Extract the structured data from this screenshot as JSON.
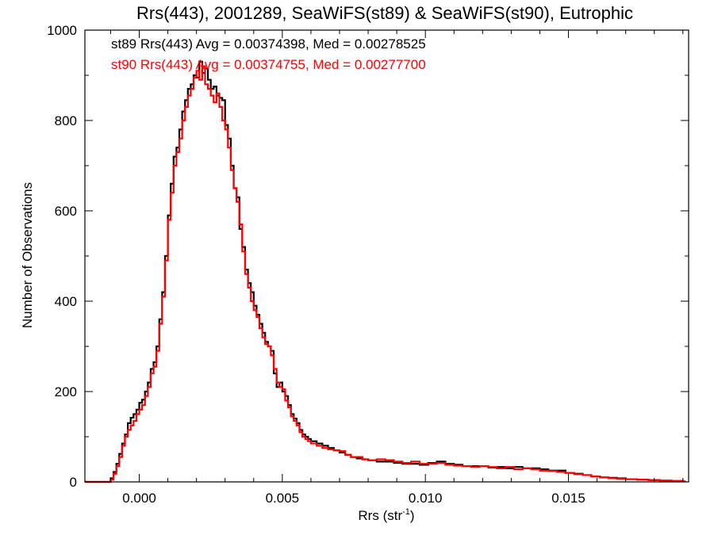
{
  "chart_data": {
    "type": "line",
    "style": "step histogram",
    "title": "Rrs(443), 2001289, SeaWiFS(st89) & SeaWiFS(st90), Eutrophic",
    "xlabel": "Rrs (str",
    "xlabel_superscript": "-1",
    "xlabel_suffix": ")",
    "ylabel": "Number of Observations",
    "xlim": [
      -0.0019,
      0.0192
    ],
    "ylim": [
      0,
      1000
    ],
    "xticks": [
      0.0,
      0.005,
      0.01,
      0.015
    ],
    "xtick_labels": [
      "0.000",
      "0.005",
      "0.010",
      "0.015"
    ],
    "yticks": [
      0,
      200,
      400,
      600,
      800,
      1000
    ],
    "ytick_labels": [
      "0",
      "200",
      "400",
      "600",
      "800",
      "1000"
    ],
    "grid": false,
    "legend_position": "top-left",
    "bin_width": 0.0001,
    "series": [
      {
        "name": "st89 Rrs(443) Avg = 0.00374398, Med = 0.00278525",
        "color": "#000000",
        "x": [
          -0.0019,
          -0.0018,
          -0.0017,
          -0.0016,
          -0.0015,
          -0.0014,
          -0.0013,
          -0.0012,
          -0.0011,
          -0.001,
          -0.0009,
          -0.0008,
          -0.0007,
          -0.0006,
          -0.0005,
          -0.0004,
          -0.0003,
          -0.0002,
          -0.0001,
          0.0,
          0.0001,
          0.0002,
          0.0003,
          0.0004,
          0.0005,
          0.0006,
          0.0007,
          0.0008,
          0.0009,
          0.001,
          0.0011,
          0.0012,
          0.0013,
          0.0014,
          0.0015,
          0.0016,
          0.0017,
          0.0018,
          0.0019,
          0.002,
          0.0021,
          0.0022,
          0.0023,
          0.0024,
          0.0025,
          0.0026,
          0.0027,
          0.0028,
          0.0029,
          0.003,
          0.0031,
          0.0032,
          0.0033,
          0.0034,
          0.0035,
          0.0036,
          0.0037,
          0.0038,
          0.0039,
          0.004,
          0.0041,
          0.0042,
          0.0043,
          0.0044,
          0.0045,
          0.0046,
          0.0047,
          0.0048,
          0.0049,
          0.005,
          0.0051,
          0.0052,
          0.0053,
          0.0054,
          0.0055,
          0.0056,
          0.0057,
          0.0058,
          0.0059,
          0.006,
          0.0062,
          0.0064,
          0.0066,
          0.0068,
          0.007,
          0.0072,
          0.0074,
          0.0076,
          0.0078,
          0.008,
          0.0083,
          0.0086,
          0.0089,
          0.0092,
          0.0095,
          0.0098,
          0.0101,
          0.0104,
          0.0107,
          0.011,
          0.0113,
          0.0116,
          0.0119,
          0.0122,
          0.0125,
          0.0128,
          0.0131,
          0.0134,
          0.0137,
          0.014,
          0.0143,
          0.0146,
          0.0149,
          0.0152,
          0.0155,
          0.0158,
          0.0161,
          0.0164,
          0.0167,
          0.017,
          0.0174,
          0.0178,
          0.0182,
          0.0186,
          0.019
        ],
        "y": [
          0,
          0,
          0,
          0,
          0,
          0,
          0,
          0,
          0,
          8,
          22,
          40,
          62,
          85,
          105,
          130,
          142,
          150,
          160,
          175,
          182,
          200,
          220,
          250,
          265,
          300,
          360,
          420,
          500,
          590,
          660,
          720,
          740,
          780,
          820,
          845,
          870,
          880,
          900,
          895,
          930,
          905,
          915,
          890,
          870,
          875,
          855,
          850,
          845,
          790,
          760,
          700,
          650,
          630,
          560,
          520,
          470,
          440,
          420,
          390,
          370,
          350,
          330,
          310,
          300,
          290,
          240,
          210,
          220,
          200,
          190,
          170,
          150,
          140,
          130,
          115,
          105,
          100,
          95,
          90,
          85,
          80,
          75,
          70,
          65,
          60,
          55,
          52,
          50,
          48,
          45,
          45,
          42,
          40,
          40,
          38,
          42,
          45,
          40,
          38,
          35,
          35,
          35,
          32,
          33,
          30,
          33,
          30,
          30,
          28,
          25,
          25,
          20,
          18,
          15,
          12,
          10,
          9,
          8,
          6,
          5,
          4,
          3,
          2,
          1
        ]
      },
      {
        "name": "st90 Rrs(443) Avg = 0.00374755, Med = 0.00277700",
        "color": "#ff0000",
        "x": [
          -0.0019,
          -0.0018,
          -0.0017,
          -0.0016,
          -0.0015,
          -0.0014,
          -0.0013,
          -0.0012,
          -0.0011,
          -0.001,
          -0.0009,
          -0.0008,
          -0.0007,
          -0.0006,
          -0.0005,
          -0.0004,
          -0.0003,
          -0.0002,
          -0.0001,
          0.0,
          0.0001,
          0.0002,
          0.0003,
          0.0004,
          0.0005,
          0.0006,
          0.0007,
          0.0008,
          0.0009,
          0.001,
          0.0011,
          0.0012,
          0.0013,
          0.0014,
          0.0015,
          0.0016,
          0.0017,
          0.0018,
          0.0019,
          0.002,
          0.0021,
          0.0022,
          0.0023,
          0.0024,
          0.0025,
          0.0026,
          0.0027,
          0.0028,
          0.0029,
          0.003,
          0.0031,
          0.0032,
          0.0033,
          0.0034,
          0.0035,
          0.0036,
          0.0037,
          0.0038,
          0.0039,
          0.004,
          0.0041,
          0.0042,
          0.0043,
          0.0044,
          0.0045,
          0.0046,
          0.0047,
          0.0048,
          0.0049,
          0.005,
          0.0051,
          0.0052,
          0.0053,
          0.0054,
          0.0055,
          0.0056,
          0.0057,
          0.0058,
          0.0059,
          0.006,
          0.0062,
          0.0064,
          0.0066,
          0.0068,
          0.007,
          0.0072,
          0.0074,
          0.0076,
          0.0078,
          0.008,
          0.0083,
          0.0086,
          0.0089,
          0.0092,
          0.0095,
          0.0098,
          0.0101,
          0.0104,
          0.0107,
          0.011,
          0.0113,
          0.0116,
          0.0119,
          0.0122,
          0.0125,
          0.0128,
          0.0131,
          0.0134,
          0.0137,
          0.014,
          0.0143,
          0.0146,
          0.0149,
          0.0152,
          0.0155,
          0.0158,
          0.0161,
          0.0164,
          0.0167,
          0.017,
          0.0174,
          0.0178,
          0.0182,
          0.0186,
          0.019
        ],
        "y": [
          0,
          0,
          0,
          0,
          0,
          0,
          0,
          0,
          0,
          5,
          18,
          35,
          55,
          80,
          100,
          115,
          125,
          135,
          150,
          160,
          170,
          190,
          210,
          240,
          255,
          290,
          350,
          410,
          490,
          580,
          640,
          700,
          730,
          760,
          800,
          830,
          855,
          870,
          895,
          910,
          890,
          920,
          880,
          870,
          855,
          840,
          860,
          830,
          800,
          780,
          740,
          690,
          650,
          620,
          570,
          510,
          460,
          430,
          400,
          380,
          365,
          340,
          320,
          305,
          300,
          280,
          250,
          220,
          210,
          205,
          180,
          165,
          145,
          135,
          125,
          110,
          100,
          95,
          90,
          85,
          80,
          75,
          72,
          70,
          68,
          60,
          55,
          55,
          50,
          48,
          50,
          48,
          45,
          42,
          45,
          40,
          40,
          42,
          38,
          36,
          35,
          33,
          35,
          33,
          30,
          33,
          28,
          30,
          28,
          25,
          24,
          22,
          20,
          17,
          15,
          12,
          10,
          8,
          7,
          6,
          5,
          4,
          3,
          2,
          1
        ]
      }
    ]
  }
}
